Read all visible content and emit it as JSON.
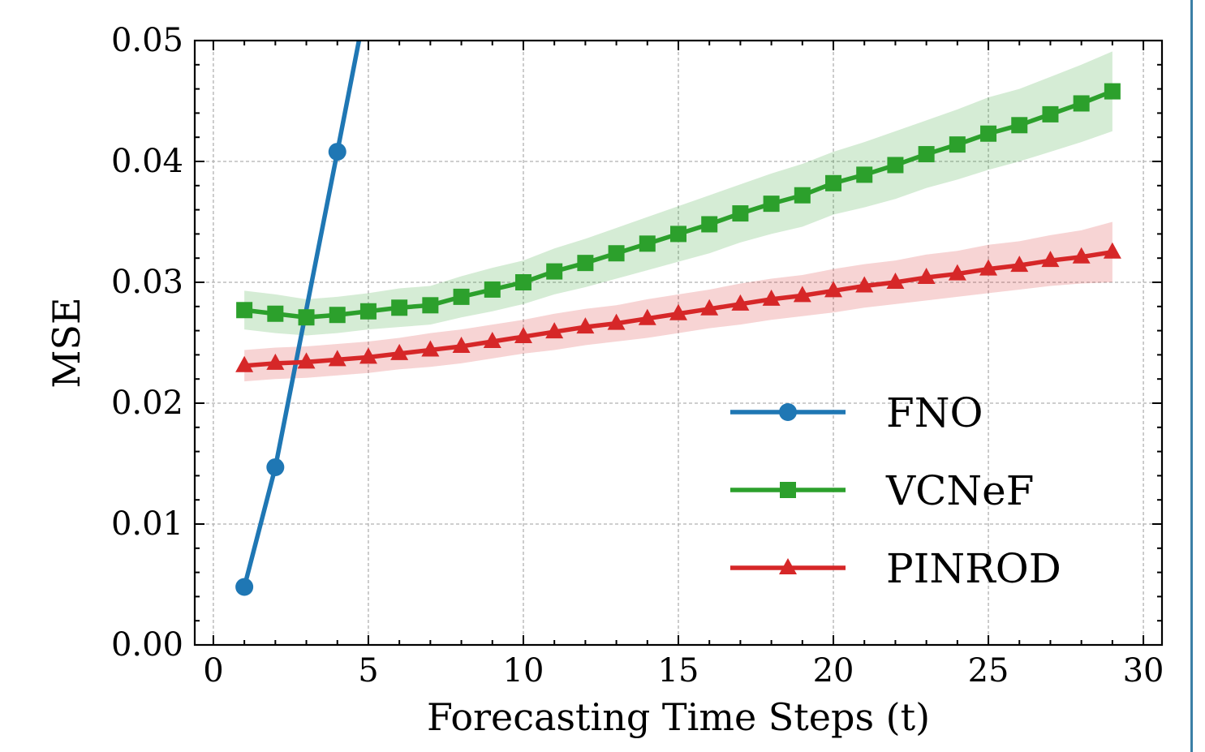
{
  "chart_data": {
    "type": "line",
    "xlabel": "Forecasting Time Steps (t)",
    "ylabel": "MSE",
    "xlim": [
      -0.6,
      30.6
    ],
    "ylim": [
      0.0,
      0.05
    ],
    "xticks": [
      "0",
      "5",
      "10",
      "15",
      "20",
      "25",
      "30"
    ],
    "yticks": [
      "0.00",
      "0.01",
      "0.02",
      "0.03",
      "0.04",
      "0.05"
    ],
    "grid": true,
    "legend_position": "lower-right",
    "series": [
      {
        "name": "FNO",
        "color": "#1f77b4",
        "marker": "circle",
        "x": [
          1,
          2,
          4,
          5
        ],
        "y": [
          0.0048,
          0.0147,
          0.0408,
          0.054
        ],
        "marker_x": [
          1,
          2,
          4
        ]
      },
      {
        "name": "VCNeF",
        "color": "#2ca02c",
        "marker": "square",
        "x": [
          1,
          2,
          3,
          4,
          5,
          6,
          7,
          8,
          9,
          10,
          11,
          12,
          13,
          14,
          15,
          16,
          17,
          18,
          19,
          20,
          21,
          22,
          23,
          24,
          25,
          26,
          27,
          28,
          29
        ],
        "y": [
          0.0277,
          0.0274,
          0.0271,
          0.0273,
          0.0276,
          0.0279,
          0.0281,
          0.0288,
          0.0294,
          0.03,
          0.0309,
          0.0316,
          0.0324,
          0.0332,
          0.034,
          0.0348,
          0.0357,
          0.0365,
          0.0372,
          0.0382,
          0.0389,
          0.0397,
          0.0406,
          0.0414,
          0.0423,
          0.043,
          0.0439,
          0.0448,
          0.0458
        ],
        "band": [
          0.0016,
          0.0016,
          0.0015,
          0.0015,
          0.0015,
          0.0016,
          0.0016,
          0.0017,
          0.0018,
          0.0018,
          0.0019,
          0.002,
          0.0021,
          0.0022,
          0.0023,
          0.0024,
          0.0024,
          0.0025,
          0.0026,
          0.0026,
          0.0027,
          0.0028,
          0.0028,
          0.0029,
          0.003,
          0.003,
          0.0031,
          0.0032,
          0.0033
        ]
      },
      {
        "name": "PINROD",
        "color": "#d62728",
        "marker": "triangle",
        "x": [
          1,
          2,
          3,
          4,
          5,
          6,
          7,
          8,
          9,
          10,
          11,
          12,
          13,
          14,
          15,
          16,
          17,
          18,
          19,
          20,
          21,
          22,
          23,
          24,
          25,
          26,
          27,
          28,
          29
        ],
        "y": [
          0.0231,
          0.0233,
          0.0234,
          0.0236,
          0.0238,
          0.0241,
          0.0244,
          0.0247,
          0.0251,
          0.0255,
          0.0259,
          0.0263,
          0.0266,
          0.027,
          0.0274,
          0.0278,
          0.0282,
          0.0286,
          0.0289,
          0.0293,
          0.0297,
          0.03,
          0.0304,
          0.0307,
          0.0311,
          0.0314,
          0.0318,
          0.0321,
          0.0325
        ],
        "band": [
          0.0013,
          0.0013,
          0.0013,
          0.0013,
          0.0013,
          0.0013,
          0.0014,
          0.0014,
          0.0014,
          0.0014,
          0.0015,
          0.0015,
          0.0015,
          0.0016,
          0.0016,
          0.0016,
          0.0017,
          0.0017,
          0.0017,
          0.0018,
          0.0018,
          0.0018,
          0.0019,
          0.0019,
          0.002,
          0.002,
          0.0021,
          0.0022,
          0.0025
        ]
      }
    ]
  }
}
